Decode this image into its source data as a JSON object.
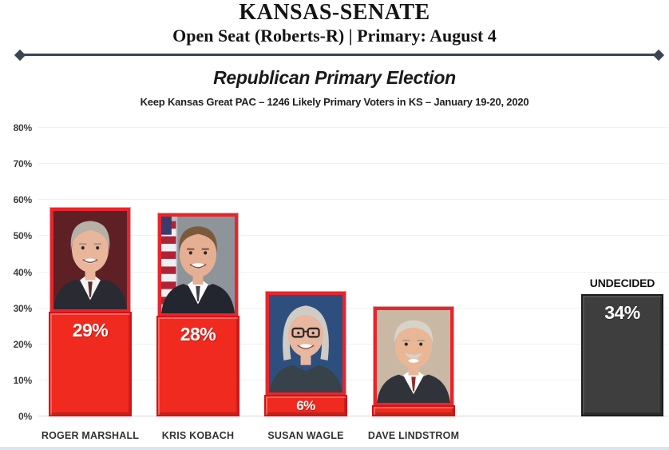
{
  "header": {
    "title": "KANSAS-SENATE",
    "subtitle": "Open Seat (Roberts-R) | Primary: August 4"
  },
  "section": {
    "title": "Republican Primary Election",
    "source": "Keep Kansas Great PAC – 1246 Likely Primary Voters in KS – January 19-20, 2020"
  },
  "chart_data": {
    "type": "bar",
    "title": "Republican Primary Election",
    "subtitle": "Keep Kansas Great PAC – 1246 Likely Primary Voters in KS – January 19-20, 2020",
    "categories": [
      "ROGER MARSHALL",
      "KRIS KOBACH",
      "SUSAN WAGLE",
      "DAVE LINDSTROM",
      "UNDECIDED"
    ],
    "values": [
      29,
      28,
      6,
      3,
      34
    ],
    "value_labels": [
      "29%",
      "28%",
      "6%",
      "",
      "34%"
    ],
    "xlabel": "",
    "ylabel": "",
    "ylim": [
      0,
      80
    ],
    "yticks": [
      "0%",
      "10%",
      "20%",
      "30%",
      "40%",
      "50%",
      "60%",
      "70%",
      "80%"
    ],
    "grid": true,
    "legend": "none",
    "bar_color": "#f02a1e",
    "bar_border_color": "#d2121a",
    "undecided_color": "#3e3e3e",
    "undecided_border_color": "#1c1c1c"
  },
  "candidates": [
    {
      "name": "ROGER MARSHALL",
      "pct": 29,
      "value_label": "29%",
      "portrait": {
        "bg": "#5e2025",
        "hair": "#b6b0a7",
        "skin": "#e9b69b",
        "suit": "#2a2a33",
        "shirt": "#f4f4f2",
        "accent": "#5a2a30"
      }
    },
    {
      "name": "KRIS KOBACH",
      "pct": 28,
      "value_label": "28%",
      "portrait": {
        "bg": "#8d949a",
        "hair": "#7a5a3b",
        "skin": "#e4af93",
        "suit": "#23262e",
        "shirt": "#ffffff",
        "accent": "#3c4250"
      }
    },
    {
      "name": "SUSAN WAGLE",
      "pct": 6,
      "value_label": "6%",
      "portrait": {
        "bg": "#2e4f7d",
        "hair": "#cfccc5",
        "skin": "#e8b7a0",
        "suit": "#37424a",
        "shirt": "#4c5a60",
        "accent": "#37424a"
      }
    },
    {
      "name": "DAVE LINDSTROM",
      "pct": 3,
      "value_label": "",
      "portrait": {
        "bg": "#c9b9a4",
        "hair": "#d7d2ca",
        "skin": "#e9b795",
        "suit": "#30343a",
        "shirt": "#ffffff",
        "accent": "#8c2f2b"
      }
    }
  ],
  "undecided": {
    "name": "UNDECIDED",
    "pct": 34,
    "value_label": "34%"
  },
  "colors": {
    "bar_red": "#f02a1e",
    "bar_red_border": "#d2121a",
    "photo_frame_red": "#e8252c",
    "undecided_gray": "#3e3e3e",
    "divider_navy": "#3a4553",
    "grid_gray": "#f1f1f1",
    "axis_text": "#3d3d3d"
  }
}
